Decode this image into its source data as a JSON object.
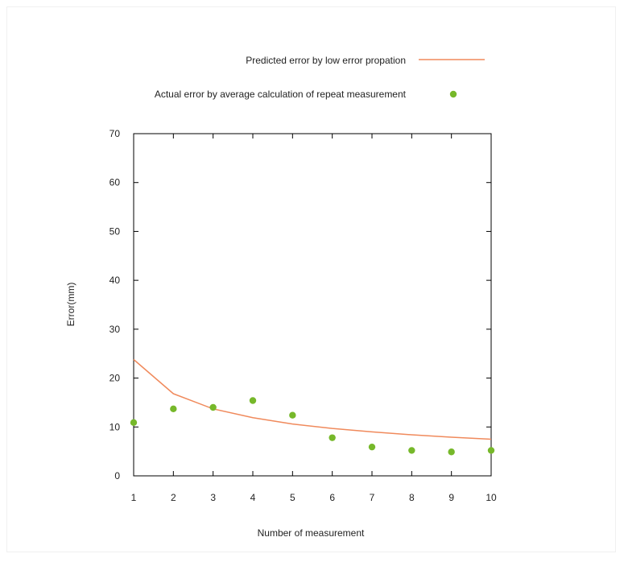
{
  "chart_data": {
    "type": "line",
    "title": "",
    "xlabel": "Number of measurement",
    "ylabel": "Error(mm)",
    "xlim": [
      1,
      10
    ],
    "ylim": [
      0,
      70
    ],
    "x_ticks": [
      1,
      2,
      3,
      4,
      5,
      6,
      7,
      8,
      9,
      10
    ],
    "y_ticks": [
      0,
      10,
      20,
      30,
      40,
      50,
      60,
      70
    ],
    "grid": false,
    "legend_position": "top",
    "series": [
      {
        "name": "Predicted error by low error propation",
        "kind": "line",
        "color": "#f08a5c",
        "x": [
          1,
          2,
          3,
          4,
          5,
          6,
          7,
          8,
          9,
          10
        ],
        "y": [
          23.8,
          16.8,
          13.7,
          11.9,
          10.6,
          9.7,
          9.0,
          8.4,
          7.9,
          7.5
        ]
      },
      {
        "name": "Actual error by average calculation of repeat measurement",
        "kind": "scatter",
        "color": "#76b82a",
        "x": [
          1,
          2,
          3,
          4,
          5,
          6,
          7,
          8,
          9,
          10
        ],
        "y": [
          10.9,
          13.7,
          14.0,
          15.4,
          12.4,
          7.8,
          5.9,
          5.2,
          4.9,
          5.2
        ]
      }
    ]
  }
}
